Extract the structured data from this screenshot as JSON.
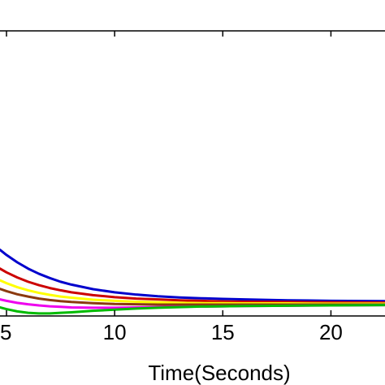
{
  "chart_data": {
    "type": "line",
    "title": "",
    "xlabel": "Time(Seconds)",
    "ylabel": "",
    "xlim": [
      4.7,
      22.5
    ],
    "ylim": [
      0,
      1
    ],
    "grid": false,
    "x_ticks": [
      5,
      10,
      15,
      20
    ],
    "x_tick_labels": [
      "5",
      "10",
      "15",
      "20"
    ],
    "line_width": 3,
    "series": [
      {
        "color": "#0000cc",
        "x": [
          4.7,
          5.0,
          5.5,
          6.0,
          6.5,
          7.0,
          7.5,
          8.0,
          9.0,
          10.0,
          11.0,
          12.0,
          13.0,
          14.0,
          15.0,
          16.0,
          18.0,
          20.0,
          22.5
        ],
        "y": [
          0.232,
          0.214,
          0.188,
          0.166,
          0.148,
          0.133,
          0.12,
          0.11,
          0.094,
          0.083,
          0.075,
          0.069,
          0.065,
          0.062,
          0.06,
          0.058,
          0.055,
          0.053,
          0.052
        ]
      },
      {
        "color": "#cc0000",
        "x": [
          4.7,
          5.0,
          5.5,
          6.0,
          6.5,
          7.0,
          7.5,
          8.0,
          9.0,
          10.0,
          11.0,
          12.0,
          13.0,
          14.0,
          15.0,
          16.0,
          18.0,
          20.0,
          22.5
        ],
        "y": [
          0.166,
          0.153,
          0.135,
          0.12,
          0.108,
          0.098,
          0.09,
          0.083,
          0.073,
          0.066,
          0.061,
          0.058,
          0.055,
          0.053,
          0.051,
          0.05,
          0.049,
          0.048,
          0.047
        ]
      },
      {
        "color": "#ffff00",
        "x": [
          4.7,
          5.0,
          5.5,
          6.0,
          6.5,
          7.0,
          7.5,
          8.0,
          9.0,
          10.0,
          11.0,
          12.0,
          13.0,
          14.0,
          15.0,
          16.0,
          18.0,
          20.0,
          22.5
        ],
        "y": [
          0.125,
          0.115,
          0.101,
          0.09,
          0.081,
          0.074,
          0.068,
          0.064,
          0.057,
          0.053,
          0.05,
          0.048,
          0.046,
          0.045,
          0.045,
          0.044,
          0.044,
          0.043,
          0.043
        ]
      },
      {
        "color": "#8b3a0f",
        "x": [
          4.7,
          5.0,
          5.5,
          6.0,
          6.5,
          7.0,
          7.5,
          8.0,
          9.0,
          10.0,
          11.0,
          12.0,
          13.0,
          14.0,
          15.0,
          16.0,
          18.0,
          20.0,
          22.5
        ],
        "y": [
          0.095,
          0.087,
          0.076,
          0.068,
          0.061,
          0.056,
          0.052,
          0.049,
          0.045,
          0.042,
          0.041,
          0.04,
          0.04,
          0.04,
          0.04,
          0.04,
          0.04,
          0.04,
          0.04
        ]
      },
      {
        "color": "#ee00ee",
        "x": [
          4.7,
          5.0,
          5.5,
          6.0,
          6.5,
          7.0,
          7.5,
          8.0,
          9.0,
          10.0,
          11.0,
          12.0,
          13.0,
          14.0,
          15.0,
          16.0,
          18.0,
          20.0,
          22.5
        ],
        "y": [
          0.058,
          0.053,
          0.046,
          0.041,
          0.037,
          0.034,
          0.032,
          0.03,
          0.029,
          0.029,
          0.03,
          0.031,
          0.032,
          0.033,
          0.034,
          0.035,
          0.036,
          0.037,
          0.038
        ]
      },
      {
        "color": "#00bb00",
        "x": [
          4.7,
          5.0,
          5.5,
          6.0,
          6.5,
          7.0,
          7.5,
          8.0,
          9.0,
          10.0,
          11.0,
          12.0,
          13.0,
          14.0,
          15.0,
          16.0,
          18.0,
          20.0,
          22.5
        ],
        "y": [
          0.03,
          0.024,
          0.016,
          0.011,
          0.009,
          0.009,
          0.011,
          0.013,
          0.018,
          0.022,
          0.026,
          0.029,
          0.031,
          0.033,
          0.034,
          0.035,
          0.036,
          0.037,
          0.038
        ]
      }
    ]
  }
}
